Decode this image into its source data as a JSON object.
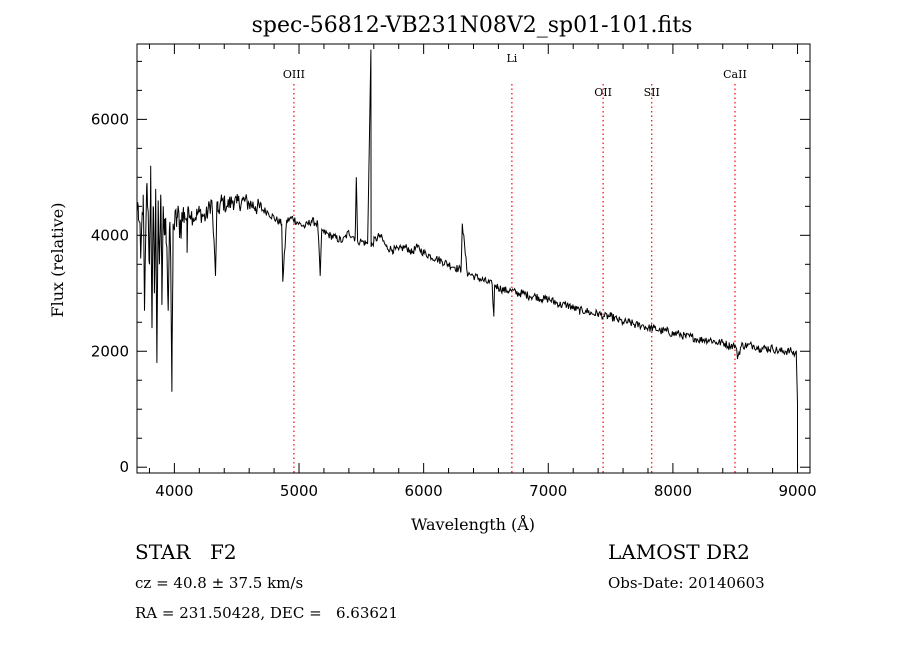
{
  "chart_data": {
    "type": "line",
    "title": "spec-56812-VB231N08V2_sp01-101.fits",
    "xlabel": "Wavelength (Å)",
    "ylabel": "Flux (relative)",
    "xlim": [
      3700,
      9100
    ],
    "ylim": [
      -100,
      7300
    ],
    "x_ticks": [
      "4000",
      "5000",
      "6000",
      "7000",
      "8000",
      "9000"
    ],
    "y_ticks": [
      "0",
      "2000",
      "4000",
      "6000"
    ],
    "series": [
      {
        "x": [
          3700,
          3710,
          3730,
          3750,
          3760,
          3780,
          3800,
          3810,
          3820,
          3830,
          3840,
          3850,
          3860,
          3870,
          3880,
          3890,
          3900,
          3910,
          3920,
          3930,
          3940,
          3950,
          3960,
          3970,
          3980,
          3990,
          4000,
          4020,
          4050,
          4080,
          4100,
          4102,
          4110,
          4150,
          4200,
          4250,
          4300,
          4330,
          4340,
          4350,
          4380,
          4420,
          4470,
          4500,
          4550,
          4600,
          4650,
          4700,
          4750,
          4800,
          4861,
          4870,
          4900,
          4950,
          5000,
          5050,
          5100,
          5150,
          5170,
          5183,
          5200,
          5250,
          5300,
          5350,
          5400,
          5450,
          5460,
          5470,
          5500,
          5550,
          5577,
          5578,
          5600,
          5650,
          5700,
          5750,
          5800,
          5850,
          5890,
          5900,
          5950,
          6000,
          6050,
          6100,
          6150,
          6200,
          6250,
          6300,
          6310,
          6350,
          6400,
          6450,
          6500,
          6550,
          6563,
          6570,
          6600,
          6650,
          6700,
          6750,
          6800,
          6850,
          6900,
          6950,
          7000,
          7050,
          7100,
          7150,
          7200,
          7250,
          7300,
          7350,
          7400,
          7450,
          7500,
          7550,
          7600,
          7650,
          7700,
          7750,
          7800,
          7850,
          7900,
          7950,
          8000,
          8050,
          8100,
          8150,
          8200,
          8250,
          8300,
          8350,
          8400,
          8450,
          8500,
          8520,
          8550,
          8600,
          8650,
          8700,
          8750,
          8800,
          8850,
          8900,
          8950,
          8980,
          8990,
          9000,
          9000
        ],
        "y": [
          4400,
          4500,
          3600,
          4700,
          2700,
          4900,
          3500,
          5200,
          2400,
          4500,
          3000,
          4800,
          1800,
          4600,
          3500,
          4700,
          2800,
          4500,
          4000,
          4300,
          3800,
          2700,
          4100,
          3600,
          1300,
          4200,
          4100,
          4300,
          4200,
          4400,
          4300,
          3700,
          4500,
          4300,
          4400,
          4300,
          4600,
          3300,
          4500,
          4400,
          4600,
          4500,
          4600,
          4550,
          4600,
          4550,
          4500,
          4450,
          4400,
          4300,
          4200,
          3200,
          4250,
          4300,
          4200,
          4150,
          4250,
          4200,
          3300,
          4100,
          4050,
          4000,
          3950,
          3900,
          4050,
          3950,
          5000,
          3900,
          3900,
          3850,
          7200,
          3800,
          3900,
          4000,
          3800,
          3750,
          3750,
          3800,
          3750,
          3700,
          3800,
          3700,
          3650,
          3600,
          3550,
          3500,
          3450,
          3400,
          4200,
          3350,
          3300,
          3250,
          3200,
          3150,
          2600,
          3150,
          3100,
          3050,
          3050,
          3000,
          3000,
          2950,
          2950,
          2900,
          2900,
          2850,
          2800,
          2800,
          2750,
          2700,
          2700,
          2650,
          2650,
          2600,
          2600,
          2550,
          2500,
          2500,
          2450,
          2450,
          2400,
          2400,
          2350,
          2350,
          2300,
          2300,
          2250,
          2250,
          2200,
          2200,
          2200,
          2150,
          2150,
          2100,
          2100,
          1900,
          2100,
          2100,
          2100,
          2050,
          2050,
          2050,
          2000,
          2000,
          2000,
          1950,
          2000,
          1100,
          0
        ]
      }
    ],
    "line_markers": [
      {
        "label": "OIII",
        "x": 4959
      },
      {
        "label": "Li",
        "x": 6708
      },
      {
        "label": "OII",
        "x": 7440
      },
      {
        "label": "SII",
        "x": 7830
      },
      {
        "label": "CaII",
        "x": 8498
      }
    ],
    "line_marker_color": "#ff0000",
    "series_color": "#000000"
  },
  "info": {
    "object_class": "STAR",
    "subclass": "F2",
    "survey": "LAMOST DR2",
    "cz": "cz = 40.8 ± 37.5 km/s",
    "obs_date": "Obs-Date: 20140603",
    "coords": "RA = 231.50428, DEC =   6.63621"
  }
}
